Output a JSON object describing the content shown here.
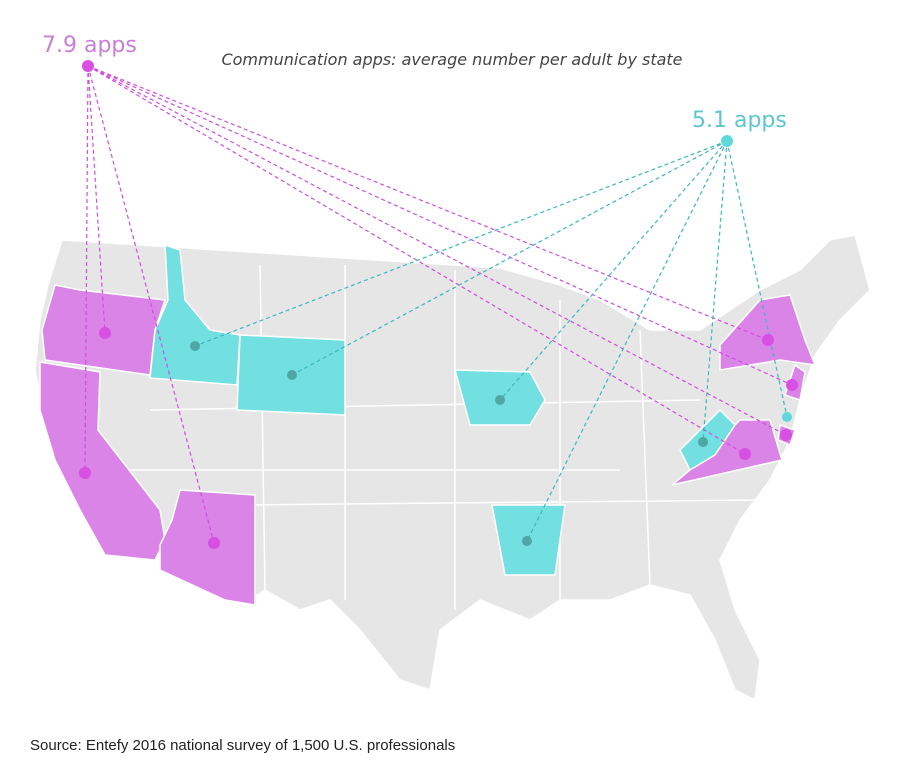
{
  "title": "Communication apps: average number per adult by state",
  "labels": {
    "high": "7.9 apps",
    "low": "5.1 apps"
  },
  "source": "Source: Entefy 2016 national survey of 1,500 U.S. professionals"
}
